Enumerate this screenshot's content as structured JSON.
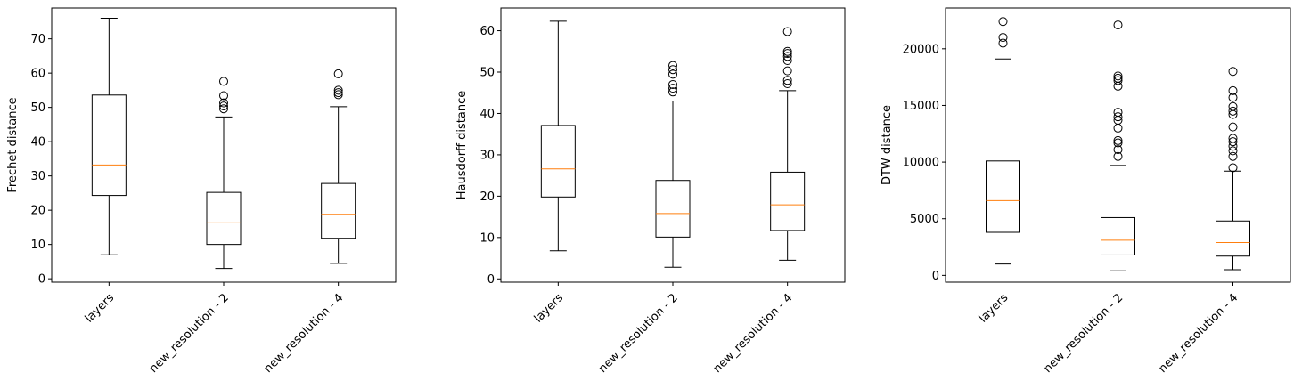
{
  "chart_data": [
    {
      "type": "box",
      "ylabel": "Frechet distance",
      "categories": [
        "layers",
        "new_resolution - 2",
        "new_resolution - 4"
      ],
      "ylim": [
        -1,
        79
      ],
      "yticks": [
        0,
        10,
        20,
        30,
        40,
        50,
        60,
        70
      ],
      "boxes": [
        {
          "whisker_low": 7,
          "q1": 24.3,
          "median": 33.2,
          "q3": 53.6,
          "whisker_high": 76,
          "outliers": []
        },
        {
          "whisker_low": 3,
          "q1": 10,
          "median": 16.3,
          "q3": 25.2,
          "whisker_high": 47.2,
          "outliers": [
            49.6,
            50.4,
            51.3,
            53.4,
            57.6
          ]
        },
        {
          "whisker_low": 4.5,
          "q1": 11.8,
          "median": 18.8,
          "q3": 27.8,
          "whisker_high": 50.2,
          "outliers": [
            53.7,
            54.3,
            55,
            59.8
          ]
        }
      ]
    },
    {
      "type": "box",
      "ylabel": "Hausdorff distance",
      "categories": [
        "layers",
        "new_resolution - 2",
        "new_resolution - 4"
      ],
      "ylim": [
        -0.8,
        65.5
      ],
      "yticks": [
        0,
        10,
        20,
        30,
        40,
        50,
        60
      ],
      "boxes": [
        {
          "whisker_low": 6.8,
          "q1": 19.8,
          "median": 26.6,
          "q3": 37.1,
          "whisker_high": 62.3,
          "outliers": []
        },
        {
          "whisker_low": 2.8,
          "q1": 10.1,
          "median": 15.8,
          "q3": 23.8,
          "whisker_high": 43,
          "outliers": [
            45.2,
            46.1,
            47,
            49.5,
            50.6,
            51.6
          ]
        },
        {
          "whisker_low": 4.5,
          "q1": 11.7,
          "median": 17.9,
          "q3": 25.8,
          "whisker_high": 45.5,
          "outliers": [
            47.2,
            48,
            50.3,
            52.8,
            53.8,
            54.5,
            55,
            59.8
          ]
        }
      ]
    },
    {
      "type": "box",
      "ylabel": "DTW distance",
      "categories": [
        "layers",
        "new_resolution - 2",
        "new_resolution - 4"
      ],
      "ylim": [
        -600,
        23600
      ],
      "yticks": [
        0,
        5000,
        10000,
        15000,
        20000
      ],
      "boxes": [
        {
          "whisker_low": 1000,
          "q1": 3800,
          "median": 6600,
          "q3": 10100,
          "whisker_high": 19100,
          "outliers": [
            20500,
            21000,
            22400
          ]
        },
        {
          "whisker_low": 400,
          "q1": 1800,
          "median": 3100,
          "q3": 5100,
          "whisker_high": 9700,
          "outliers": [
            10500,
            11100,
            11700,
            11900,
            13000,
            13700,
            14000,
            14400,
            16700,
            17200,
            17400,
            17600,
            22100
          ]
        },
        {
          "whisker_low": 500,
          "q1": 1700,
          "median": 2900,
          "q3": 4800,
          "whisker_high": 9200,
          "outliers": [
            9500,
            10500,
            11000,
            11400,
            11800,
            12100,
            13100,
            14200,
            14500,
            14900,
            15700,
            16300,
            18000
          ]
        }
      ]
    }
  ]
}
